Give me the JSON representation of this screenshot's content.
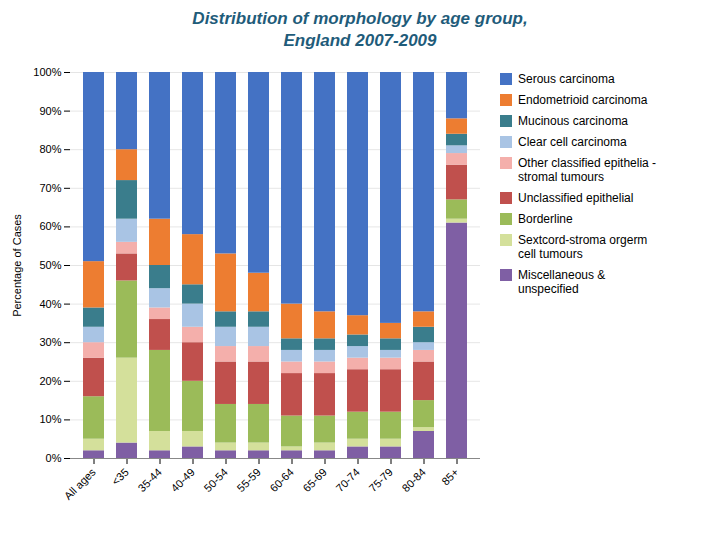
{
  "chart_data": {
    "type": "bar",
    "stacked": true,
    "title": "Distribution of morphology by age group,\nEngland 2007-2009",
    "y_label": "Percentage of Cases",
    "categories": [
      "All ages",
      "<35",
      "35-44",
      "40-49",
      "50-54",
      "55-59",
      "60-64",
      "65-69",
      "70-74",
      "75-79",
      "80-84",
      "85+"
    ],
    "series": [
      {
        "name": "Miscellaneous &\nunspecified",
        "color": "#7F5FA4",
        "values": [
          2,
          4,
          2,
          3,
          2,
          2,
          2,
          2,
          3,
          3,
          7,
          61
        ]
      },
      {
        "name": "Sextcord-stroma orgerm\ncell tumours",
        "color": "#D4E09B",
        "values": [
          3,
          22,
          5,
          4,
          2,
          2,
          1,
          2,
          2,
          2,
          1,
          1
        ]
      },
      {
        "name": "Borderline",
        "color": "#9BBB59",
        "values": [
          11,
          20,
          21,
          13,
          10,
          10,
          8,
          7,
          7,
          7,
          7,
          5
        ]
      },
      {
        "name": "Unclassified epithelial",
        "color": "#C0504D",
        "values": [
          10,
          7,
          8,
          10,
          11,
          11,
          11,
          11,
          11,
          11,
          10,
          9
        ]
      },
      {
        "name": "Other classified epithelia -\nstromal tumours",
        "color": "#F4AFAB",
        "values": [
          4,
          3,
          3,
          4,
          4,
          4,
          3,
          3,
          3,
          3,
          3,
          3
        ]
      },
      {
        "name": "Clear cell carcinoma",
        "color": "#A9C4E4",
        "values": [
          4,
          6,
          5,
          6,
          5,
          5,
          3,
          3,
          3,
          2,
          2,
          2
        ]
      },
      {
        "name": "Mucinous carcinoma",
        "color": "#3A7D8C",
        "values": [
          5,
          10,
          6,
          5,
          4,
          4,
          3,
          3,
          3,
          3,
          4,
          3
        ]
      },
      {
        "name": "Endometrioid carcinoma",
        "color": "#ED7D31",
        "values": [
          12,
          8,
          12,
          13,
          15,
          10,
          9,
          7,
          5,
          4,
          4,
          4
        ]
      },
      {
        "name": "Serous carcinoma",
        "color": "#4472C4",
        "values": [
          49,
          20,
          38,
          42,
          47,
          52,
          60,
          62,
          63,
          65,
          62,
          12
        ]
      }
    ],
    "ylim": [
      0,
      100
    ],
    "yticks": [
      {
        "value": 0,
        "label": "0%"
      },
      {
        "value": 10,
        "label": "10%"
      },
      {
        "value": 20,
        "label": "20%"
      },
      {
        "value": 30,
        "label": "30%"
      },
      {
        "value": 40,
        "label": "40%"
      },
      {
        "value": 50,
        "label": "50%"
      },
      {
        "value": 60,
        "label": "60%"
      },
      {
        "value": 70,
        "label": "70%"
      },
      {
        "value": 80,
        "label": "80%"
      },
      {
        "value": 90,
        "label": "90%"
      },
      {
        "value": 100,
        "label": "100%"
      }
    ],
    "grid": true,
    "legend": "right"
  }
}
